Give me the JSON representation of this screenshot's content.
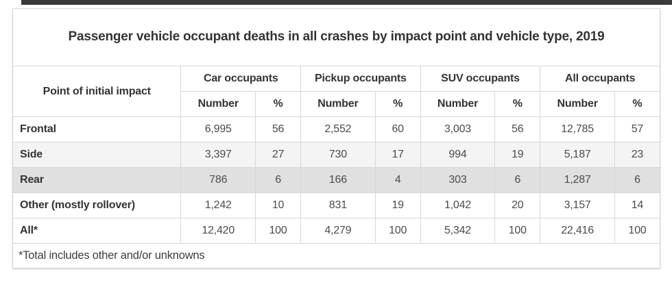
{
  "title": "Passenger vehicle occupant deaths in all crashes by impact point and vehicle type, 2019",
  "table": {
    "row_header_label": "Point of initial impact",
    "groups": [
      {
        "label": "Car occupants"
      },
      {
        "label": "Pickup occupants"
      },
      {
        "label": "SUV occupants"
      },
      {
        "label": "All occupants"
      }
    ],
    "subheaders": {
      "number": "Number",
      "percent": "%"
    },
    "rows": [
      {
        "label": "Frontal",
        "highlight": "none",
        "values": [
          "6,995",
          "56",
          "2,552",
          "60",
          "3,003",
          "56",
          "12,785",
          "57"
        ]
      },
      {
        "label": "Side",
        "highlight": "light",
        "values": [
          "3,397",
          "27",
          "730",
          "17",
          "994",
          "19",
          "5,187",
          "23"
        ]
      },
      {
        "label": "Rear",
        "highlight": "medium",
        "values": [
          "786",
          "6",
          "166",
          "4",
          "303",
          "6",
          "1,287",
          "6"
        ]
      },
      {
        "label": "Other (mostly rollover)",
        "highlight": "none",
        "values": [
          "1,242",
          "10",
          "831",
          "19",
          "1,042",
          "20",
          "3,157",
          "14"
        ]
      },
      {
        "label": "All*",
        "highlight": "none",
        "values": [
          "12,420",
          "100",
          "4,279",
          "100",
          "5,342",
          "100",
          "22,416",
          "100"
        ]
      }
    ],
    "footnote": "*Total includes other and/or unknowns"
  },
  "colors": {
    "top_bar": "#3a3a3a",
    "border": "#d6d6d6",
    "outer_border": "#c9c9c9",
    "row_light": "#f4f4f4",
    "row_medium": "#e0e0e0",
    "text_dark": "#333333",
    "text_data": "#4b4b4b"
  },
  "chart_data": {
    "type": "table",
    "title": "Passenger vehicle occupant deaths in all crashes by impact point and vehicle type, 2019",
    "row_header": "Point of initial impact",
    "column_groups": [
      "Car occupants",
      "Pickup occupants",
      "SUV occupants",
      "All occupants"
    ],
    "sub_columns": [
      "Number",
      "%"
    ],
    "rows": [
      {
        "label": "Frontal",
        "car": [
          6995,
          56
        ],
        "pickup": [
          2552,
          60
        ],
        "suv": [
          3003,
          56
        ],
        "all": [
          12785,
          57
        ]
      },
      {
        "label": "Side",
        "car": [
          3397,
          27
        ],
        "pickup": [
          730,
          17
        ],
        "suv": [
          994,
          19
        ],
        "all": [
          5187,
          23
        ]
      },
      {
        "label": "Rear",
        "car": [
          786,
          6
        ],
        "pickup": [
          166,
          4
        ],
        "suv": [
          303,
          6
        ],
        "all": [
          1287,
          6
        ]
      },
      {
        "label": "Other (mostly rollover)",
        "car": [
          1242,
          10
        ],
        "pickup": [
          831,
          19
        ],
        "suv": [
          1042,
          20
        ],
        "all": [
          3157,
          14
        ]
      },
      {
        "label": "All*",
        "car": [
          12420,
          100
        ],
        "pickup": [
          4279,
          100
        ],
        "suv": [
          5342,
          100
        ],
        "all": [
          22416,
          100
        ]
      }
    ],
    "footnote": "*Total includes other and/or unknowns",
    "highlighted_row": "Rear"
  }
}
